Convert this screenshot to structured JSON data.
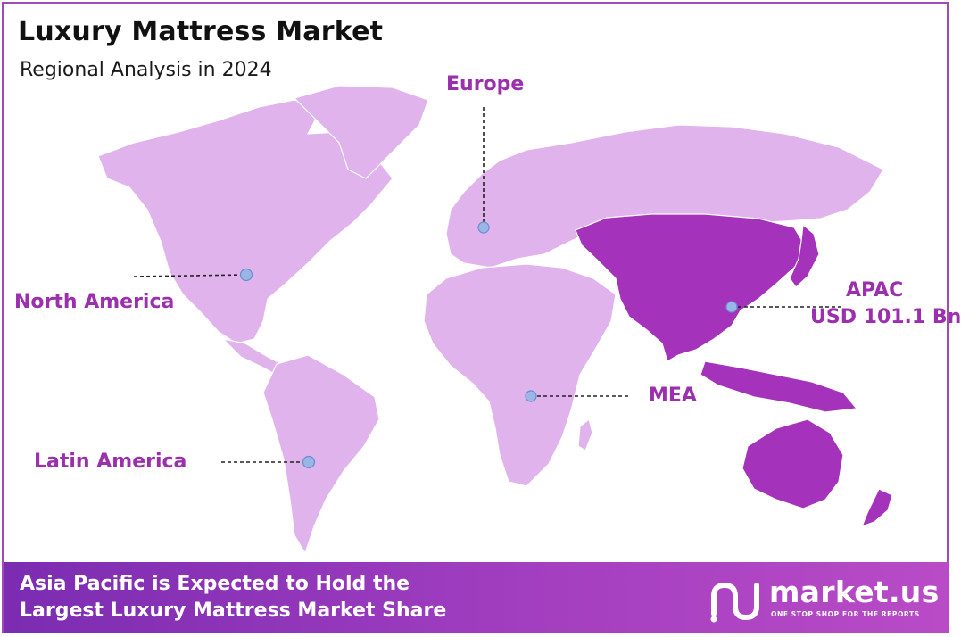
{
  "header": {
    "title": "Luxury Mattress Market",
    "subtitle": "Regional Analysis in 2024"
  },
  "regions": {
    "europe": "Europe",
    "north_america": "North America",
    "apac": "APAC",
    "apac_value": "USD 101.1 Bn",
    "mea": "MEA",
    "latin_america": "Latin America"
  },
  "colors": {
    "land": "#e0b3ec",
    "highlight": "#a532ba",
    "label": "#9b2fae",
    "marker": "#9ab6e4",
    "border": "#a04bb8",
    "footer_start": "#7b2cb1",
    "footer_end": "#b94bc6"
  },
  "footer": {
    "line1": "Asia Pacific is Expected to Hold the",
    "line2": "Largest Luxury Mattress Market Share"
  },
  "brand": {
    "name": "market.us",
    "tagline": "ONE STOP SHOP FOR THE REPORTS"
  }
}
